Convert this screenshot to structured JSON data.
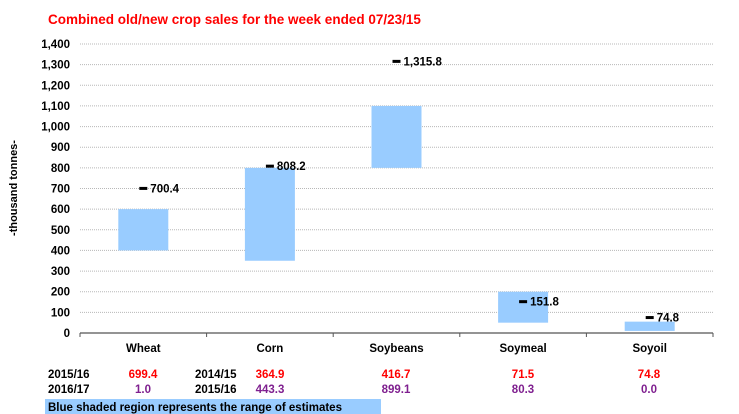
{
  "chart_data": {
    "type": "bar",
    "subtype": "floating-range-with-marker",
    "title": "Combined old/new crop sales for the week ended 07/23/15",
    "title_color": "#ff0000",
    "ylabel": "-thousand tonnes-",
    "ylim": [
      0,
      1400
    ],
    "yticks": [
      0,
      100,
      200,
      300,
      400,
      500,
      600,
      700,
      800,
      900,
      1000,
      1100,
      1200,
      1300,
      1400
    ],
    "ytick_labels": [
      "0",
      "100",
      "200",
      "300",
      "400",
      "500",
      "600",
      "700",
      "800",
      "900",
      "1,000",
      "1,100",
      "1,200",
      "1,300",
      "1,400"
    ],
    "grid": true,
    "range_color": "#99ccff",
    "categories": [
      "Wheat",
      "Corn",
      "Soybeans",
      "Soymeal",
      "Soyoil"
    ],
    "ranges": [
      [
        400,
        600
      ],
      [
        350,
        800
      ],
      [
        800,
        1100
      ],
      [
        50,
        200
      ],
      [
        10,
        55
      ]
    ],
    "actuals": [
      700.4,
      808.2,
      1315.8,
      151.8,
      74.8
    ],
    "actual_labels": [
      "700.4",
      "808.2",
      "1,315.8",
      "151.8",
      "74.8"
    ]
  },
  "table": {
    "row1_year_labels": [
      "2015/16",
      "2014/15"
    ],
    "row2_year_labels": [
      "2016/17",
      "2015/16"
    ],
    "row1_values": [
      "699.4",
      "364.9",
      "416.7",
      "71.5",
      "74.8"
    ],
    "row2_values": [
      "1.0",
      "443.3",
      "899.1",
      "80.3",
      "0.0"
    ],
    "row1_color": "#ff0000",
    "row2_color": "#7f1f8f"
  },
  "footnote": "Blue shaded region represents the range of estimates"
}
